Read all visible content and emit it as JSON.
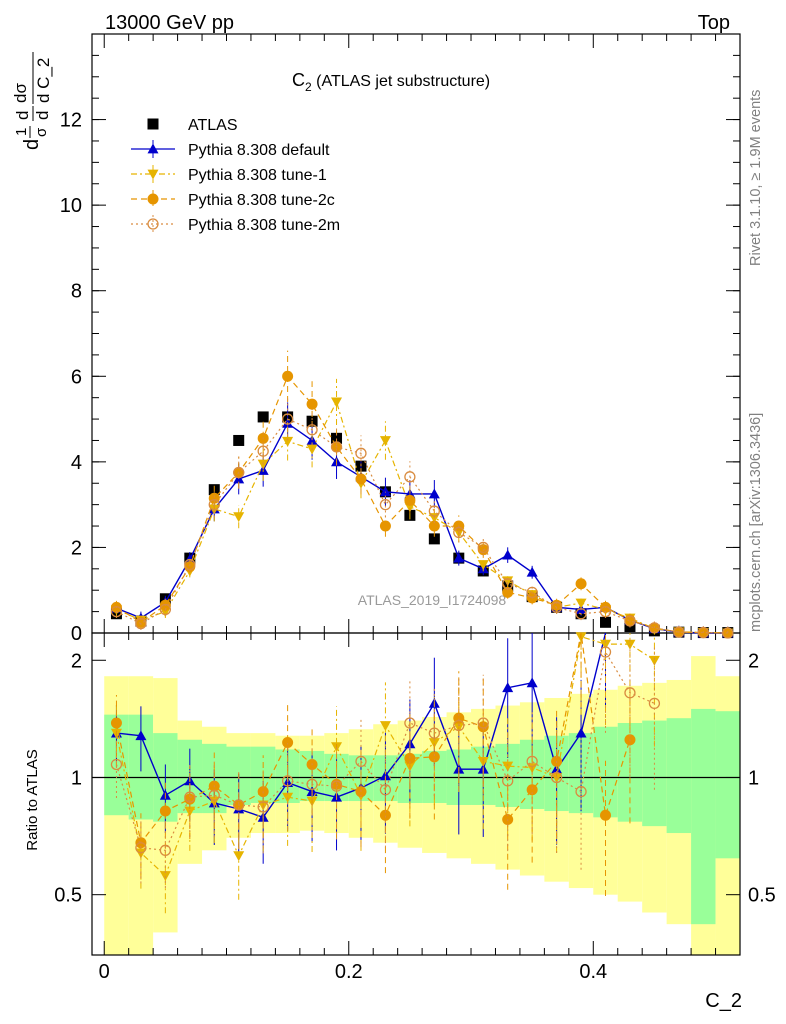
{
  "header": {
    "left": "13000 GeV pp",
    "right": "Top"
  },
  "side": {
    "rivet": "Rivet 3.1.10, ≥ 1.9M events",
    "mcplots": "mcplots.cern.ch [arXiv:1306.3436]"
  },
  "labels": {
    "title_main": "C",
    "title_sub": "2",
    "title_rest": " (ATLAS jet substructure)",
    "ylabel_upper": "dσ / d C_2 (1/σ)",
    "ylabel_lower": "Ratio to ATLAS",
    "xlabel": "C_2",
    "watermark": "ATLAS_2019_I1724098"
  },
  "colors": {
    "data": "#000000",
    "default": "#0000cc",
    "tune1": "#e6b400",
    "tune2c": "#e69500",
    "tune2m": "#d98c40",
    "band_inner": "#99ff99",
    "band_outer": "#ffff99"
  },
  "chart_data": {
    "type": "scatter",
    "x": [
      0.01,
      0.03,
      0.05,
      0.07,
      0.09,
      0.11,
      0.13,
      0.15,
      0.17,
      0.19,
      0.21,
      0.23,
      0.25,
      0.27,
      0.29,
      0.31,
      0.33,
      0.35,
      0.37,
      0.39,
      0.41,
      0.43,
      0.45,
      0.47,
      0.49,
      0.51
    ],
    "xlim": [
      -0.01,
      0.52
    ],
    "ylim_upper": [
      0,
      14
    ],
    "ylim_lower": [
      0.35,
      2.35
    ],
    "xticks": [
      0,
      0.2,
      0.4
    ],
    "yticks_upper": [
      0,
      2,
      4,
      6,
      8,
      10,
      12
    ],
    "yticks_lower": [
      0.5,
      1,
      2
    ],
    "legend_position": "top-left",
    "series": [
      {
        "name": "ATLAS",
        "key": "data",
        "marker": "square",
        "values": [
          0.45,
          0.28,
          0.8,
          1.75,
          3.35,
          4.5,
          5.05,
          5.05,
          4.95,
          4.55,
          3.9,
          3.3,
          2.75,
          2.2,
          1.75,
          1.45,
          1.1,
          0.85,
          0.6,
          0.45,
          0.25,
          0.15,
          0.05,
          0.02,
          0.01,
          0.01
        ]
      },
      {
        "name": "Pythia 8.308 default",
        "key": "default",
        "marker": "triangle-up",
        "values": [
          0.58,
          0.35,
          0.72,
          1.72,
          2.9,
          3.6,
          3.8,
          4.9,
          4.5,
          4.0,
          3.65,
          3.3,
          3.25,
          3.25,
          1.75,
          1.5,
          1.82,
          1.42,
          0.6,
          0.55,
          0.6,
          0.3,
          0.1,
          0.02,
          0.0,
          0.0
        ],
        "ratio": [
          1.3,
          1.28,
          0.9,
          0.98,
          0.86,
          0.83,
          0.79,
          0.97,
          0.92,
          0.89,
          0.94,
          1.01,
          1.22,
          1.55,
          1.05,
          1.05,
          1.7,
          1.75,
          1.05,
          1.3,
          2.4,
          null,
          null,
          null,
          null,
          null
        ]
      },
      {
        "name": "Pythia 8.308 tune-1",
        "key": "tune1",
        "marker": "triangle-down",
        "values": [
          0.55,
          0.3,
          0.5,
          1.45,
          2.9,
          2.72,
          3.95,
          4.48,
          4.3,
          5.4,
          3.5,
          4.5,
          2.95,
          2.7,
          2.35,
          1.6,
          1.22,
          0.9,
          0.6,
          0.7,
          0.55,
          0.35,
          0.1,
          0.03,
          0.01,
          0.0
        ],
        "ratio": [
          1.3,
          0.64,
          0.56,
          0.82,
          0.87,
          0.63,
          0.85,
          0.89,
          0.87,
          1.2,
          0.9,
          1.36,
          1.07,
          1.23,
          1.35,
          1.1,
          1.07,
          1.06,
          1.0,
          2.3,
          2.2,
          2.2,
          2.0,
          null,
          null,
          null
        ]
      },
      {
        "name": "Pythia 8.308 tune-2c",
        "key": "tune2c",
        "marker": "circle",
        "values": [
          0.6,
          0.25,
          0.65,
          1.55,
          3.15,
          3.75,
          4.55,
          6.0,
          5.35,
          4.35,
          3.6,
          2.5,
          3.1,
          2.5,
          2.5,
          1.95,
          0.95,
          0.82,
          0.65,
          1.15,
          0.6,
          0.3,
          0.12,
          0.02,
          0.01,
          0.0
        ],
        "ratio": [
          1.38,
          0.68,
          0.82,
          0.88,
          0.95,
          0.85,
          0.92,
          1.23,
          1.08,
          0.96,
          0.92,
          0.8,
          1.12,
          1.13,
          1.42,
          1.35,
          0.78,
          0.93,
          1.1,
          2.4,
          0.8,
          1.25,
          null,
          null,
          null,
          null
        ]
      },
      {
        "name": "Pythia 8.308 tune-2m",
        "key": "tune2m",
        "marker": "open-circle",
        "values": [
          0.5,
          0.22,
          0.55,
          1.6,
          3.0,
          3.75,
          4.25,
          5.0,
          4.75,
          4.35,
          4.2,
          3.0,
          3.65,
          2.85,
          2.35,
          2.0,
          1.15,
          0.95,
          0.6,
          0.45,
          0.5,
          0.28,
          0.12,
          0.02,
          0.01,
          0.0
        ],
        "ratio": [
          1.08,
          0.66,
          0.65,
          0.89,
          0.9,
          0.85,
          0.84,
          0.98,
          0.96,
          0.95,
          1.1,
          0.93,
          1.38,
          1.3,
          1.36,
          1.38,
          0.98,
          1.1,
          1.0,
          0.92,
          2.1,
          1.65,
          1.55,
          null,
          null,
          null
        ]
      }
    ],
    "data_errors": [
      0.1,
      0.08,
      0.08,
      0.1,
      0.12,
      0.12,
      0.12,
      0.12,
      0.12,
      0.12,
      0.1,
      0.1,
      0.1,
      0.1,
      0.08,
      0.06,
      0.05,
      0.04,
      0.03,
      0.03,
      0.02,
      0.02,
      0.01,
      0.01,
      0.01,
      0.01
    ],
    "band_inner": [
      [
        0.8,
        1.45
      ],
      [
        0.78,
        1.45
      ],
      [
        0.77,
        1.3
      ],
      [
        0.81,
        1.25
      ],
      [
        0.81,
        1.22
      ],
      [
        0.85,
        1.2
      ],
      [
        0.86,
        1.2
      ],
      [
        0.86,
        1.18
      ],
      [
        0.87,
        1.17
      ],
      [
        0.87,
        1.15
      ],
      [
        0.87,
        1.14
      ],
      [
        0.87,
        1.14
      ],
      [
        0.86,
        1.15
      ],
      [
        0.86,
        1.17
      ],
      [
        0.85,
        1.18
      ],
      [
        0.85,
        1.2
      ],
      [
        0.84,
        1.22
      ],
      [
        0.83,
        1.25
      ],
      [
        0.82,
        1.28
      ],
      [
        0.81,
        1.3
      ],
      [
        0.79,
        1.35
      ],
      [
        0.77,
        1.38
      ],
      [
        0.75,
        1.4
      ],
      [
        0.72,
        1.42
      ],
      [
        0.42,
        1.5
      ],
      [
        0.62,
        1.48
      ]
    ],
    "band_outer": [
      [
        0.35,
        1.82
      ],
      [
        0.35,
        1.82
      ],
      [
        0.4,
        1.8
      ],
      [
        0.6,
        1.4
      ],
      [
        0.65,
        1.35
      ],
      [
        0.7,
        1.3
      ],
      [
        0.72,
        1.3
      ],
      [
        0.72,
        1.28
      ],
      [
        0.73,
        1.28
      ],
      [
        0.72,
        1.3
      ],
      [
        0.7,
        1.33
      ],
      [
        0.68,
        1.37
      ],
      [
        0.66,
        1.4
      ],
      [
        0.64,
        1.43
      ],
      [
        0.62,
        1.47
      ],
      [
        0.6,
        1.5
      ],
      [
        0.58,
        1.53
      ],
      [
        0.56,
        1.56
      ],
      [
        0.54,
        1.6
      ],
      [
        0.52,
        1.64
      ],
      [
        0.5,
        1.68
      ],
      [
        0.48,
        1.72
      ],
      [
        0.45,
        1.75
      ],
      [
        0.42,
        1.78
      ],
      [
        0.35,
        2.05
      ],
      [
        0.35,
        1.82
      ]
    ]
  }
}
